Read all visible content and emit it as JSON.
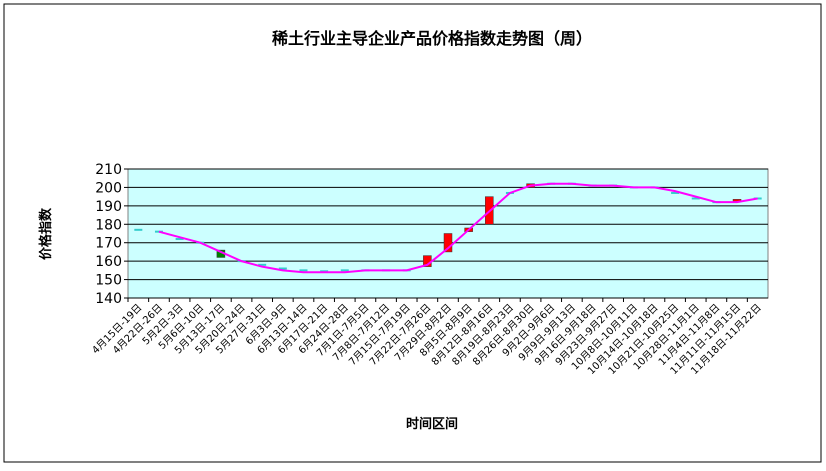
{
  "chart_data": {
    "type": "candlestick",
    "title": "稀土行业主导企业产品价格指数走势图（周）",
    "y_label": "价格指数",
    "x_label": "时间区间",
    "categories": [
      "4月15日-19日",
      "4月22日-26日",
      "5月2日-3日",
      "5月6日-10日",
      "5月13日-17日",
      "5月20日-24日",
      "5月27日-31日",
      "6月3日-9日",
      "6月13日-14日",
      "6月17日-21日",
      "6月24日-28日",
      "7月1日-7月5日",
      "7月8日-7月12日",
      "7月15日-7月19日",
      "7月22日-7月26日",
      "7月29日-8月2日",
      "8月5日-8月9日",
      "8月12日-8月16日",
      "8月19日-8月23日",
      "8月26日-8月30日",
      "9月2日-9月6日",
      "9月9日-9月13日",
      "9月16日-9月18日",
      "9月23日-9月27日",
      "10月8日-10月11日",
      "10月14日-10月18日",
      "10月21日-10月25日",
      "10月28日-11月1日",
      "11月4日-11月8日",
      "11月11日-11月15日",
      "11月18日-11月22日"
    ],
    "open": [
      177,
      176,
      172,
      170,
      166,
      160,
      158,
      156,
      155,
      154.5,
      155,
      155,
      155,
      155,
      157,
      165,
      176,
      180,
      197,
      200,
      202,
      202,
      201,
      201,
      200,
      200,
      197,
      194,
      192,
      192,
      194
    ],
    "close": [
      177,
      176,
      172,
      170,
      162,
      160,
      158,
      156,
      155,
      154.5,
      155,
      155,
      155,
      155,
      163,
      175,
      178,
      195,
      197,
      202,
      202,
      202,
      201,
      201,
      200,
      200,
      197,
      194,
      192,
      193,
      194
    ],
    "trend": [
      null,
      176,
      173,
      170,
      165,
      160,
      157,
      155,
      154,
      154,
      154,
      155,
      155,
      155,
      158,
      167,
      177,
      187,
      197,
      201,
      202,
      202,
      201,
      201,
      200,
      200,
      198,
      195,
      192,
      192,
      194
    ],
    "up_color": "#ff0000",
    "down_color": "#008000",
    "flat_color": "#33cccc",
    "trend_color": "#ff00ff",
    "plot_background": "#ccffff",
    "ylim": [
      140,
      210
    ],
    "yticks": [
      140,
      150,
      160,
      170,
      180,
      190,
      200,
      210
    ],
    "grid": true
  }
}
